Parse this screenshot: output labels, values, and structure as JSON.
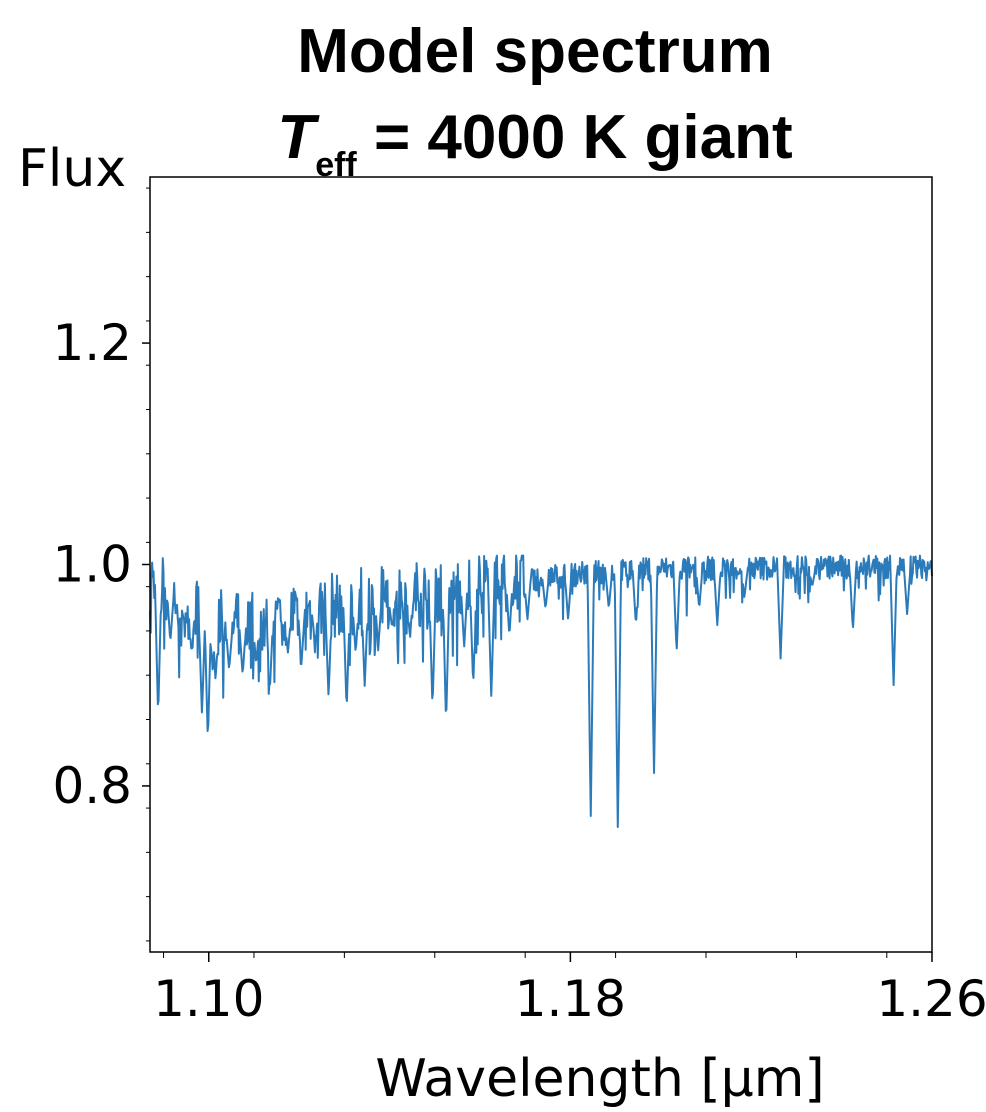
{
  "chart_data": {
    "type": "line",
    "title_line1": "Model spectrum",
    "title_line2": {
      "symbol": "T",
      "subscript": "eff",
      "rest": " = 4000 K giant"
    },
    "xlabel": "Wavelength [μm]",
    "ylabel": "Flux",
    "xlim": [
      1.087,
      1.26
    ],
    "ylim": [
      0.65,
      1.35
    ],
    "x_ticks": [
      1.1,
      1.18,
      1.26
    ],
    "x_tick_labels": [
      "1.10",
      "1.18",
      "1.26"
    ],
    "y_ticks": [
      0.8,
      1.0,
      1.2
    ],
    "y_tick_labels": [
      "0.8",
      "1.0",
      "1.2"
    ],
    "grid": false,
    "line_color": "#2b7bba",
    "series": [
      {
        "x_start": 1.087,
        "x_end": 1.26,
        "continuum": [
          [
            1.087,
            0.985
          ],
          [
            1.097,
            0.955
          ],
          [
            1.105,
            0.94
          ],
          [
            1.115,
            0.95
          ],
          [
            1.13,
            0.962
          ],
          [
            1.145,
            0.97
          ],
          [
            1.16,
            0.98
          ],
          [
            1.18,
            0.99
          ],
          [
            1.2,
            0.995
          ],
          [
            1.26,
            0.997
          ]
        ],
        "lines": [
          [
            1.0888,
            0.862
          ],
          [
            1.0915,
            0.93
          ],
          [
            1.0945,
            0.95
          ],
          [
            1.0962,
            0.92
          ],
          [
            1.0985,
            0.864
          ],
          [
            1.0998,
            0.84
          ],
          [
            1.1015,
            0.895
          ],
          [
            1.1045,
            0.905
          ],
          [
            1.1075,
            0.9
          ],
          [
            1.1105,
            0.91
          ],
          [
            1.1135,
            0.885
          ],
          [
            1.1175,
            0.92
          ],
          [
            1.1205,
            0.91
          ],
          [
            1.1235,
            0.93
          ],
          [
            1.1265,
            0.88
          ],
          [
            1.1305,
            0.868
          ],
          [
            1.1325,
            0.92
          ],
          [
            1.1345,
            0.89
          ],
          [
            1.1375,
            0.925
          ],
          [
            1.1405,
            0.945
          ],
          [
            1.1445,
            0.935
          ],
          [
            1.1495,
            0.87
          ],
          [
            1.1525,
            0.855
          ],
          [
            1.1565,
            0.925
          ],
          [
            1.1585,
            0.89
          ],
          [
            1.1625,
            0.88
          ],
          [
            1.1665,
            0.935
          ],
          [
            1.1705,
            0.95
          ],
          [
            1.1745,
            0.96
          ],
          [
            1.1795,
            0.95
          ],
          [
            1.1845,
            0.77
          ],
          [
            1.1885,
            0.96
          ],
          [
            1.1905,
            0.758
          ],
          [
            1.1945,
            0.945
          ],
          [
            1.1985,
            0.81
          ],
          [
            1.2035,
            0.92
          ],
          [
            1.2085,
            0.96
          ],
          [
            1.2125,
            0.945
          ],
          [
            1.2185,
            0.97
          ],
          [
            1.2265,
            0.915
          ],
          [
            1.2335,
            0.98
          ],
          [
            1.2425,
            0.94
          ],
          [
            1.2515,
            0.89
          ],
          [
            1.2545,
            0.955
          ]
        ]
      }
    ]
  }
}
